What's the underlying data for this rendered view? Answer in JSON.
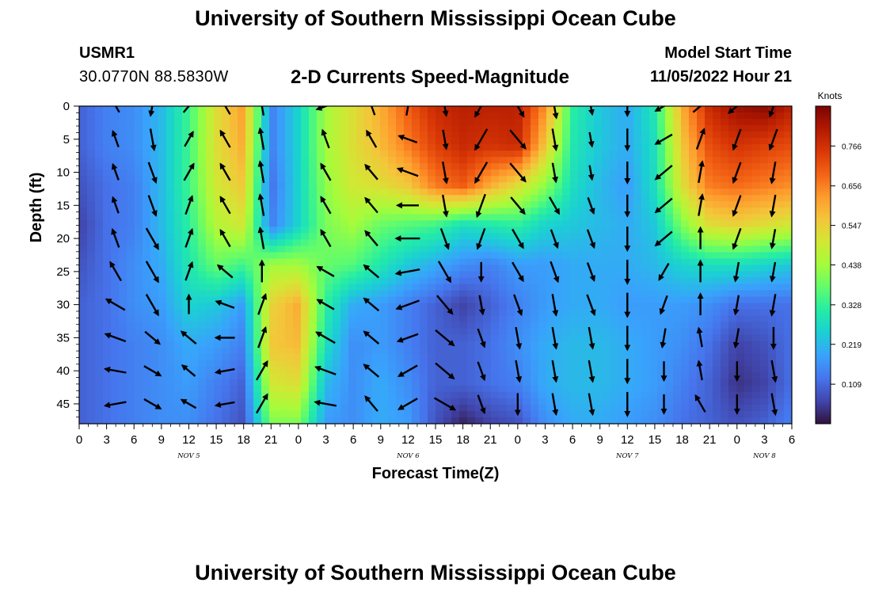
{
  "header": {
    "title": "University of Southern Mississippi Ocean Cube",
    "station_name": "USMR1",
    "station_coords": "30.0770N  88.5830W",
    "chart_title": "2-D Currents Speed-Magnitude",
    "model_start_label": "Model Start Time",
    "model_start_value": "11/05/2022 Hour 21"
  },
  "footer": {
    "title": "University of Southern Mississippi Ocean Cube"
  },
  "chart_data": {
    "type": "heatmap",
    "title": "2-D Currents Speed-Magnitude",
    "xlabel": "Forecast Time(Z)",
    "ylabel": "Depth (ft)",
    "x_ticks": [
      "0",
      "3",
      "6",
      "9",
      "12",
      "15",
      "18",
      "21",
      "0",
      "3",
      "6",
      "9",
      "12",
      "15",
      "18",
      "21",
      "0",
      "3",
      "6",
      "9",
      "12",
      "15",
      "18",
      "21",
      "0",
      "3",
      "6"
    ],
    "x_day_labels": [
      {
        "label": "NOV 5",
        "at_hour": 12
      },
      {
        "label": "NOV 6",
        "at_hour": 36
      },
      {
        "label": "NOV 7",
        "at_hour": 60
      },
      {
        "label": "NOV 8",
        "at_hour": 75
      }
    ],
    "xlim_hours": [
      0,
      78
    ],
    "y_ticks": [
      0,
      5,
      10,
      15,
      20,
      25,
      30,
      35,
      40,
      45
    ],
    "ylim": [
      0,
      48
    ],
    "y_inverted": true,
    "colorbar": {
      "label": "Knots",
      "ticks": [
        0.766,
        0.656,
        0.547,
        0.438,
        0.328,
        0.219,
        0.109
      ],
      "range": [
        0.0,
        0.876
      ],
      "colors": [
        "#30123b",
        "#4145ab",
        "#4675ed",
        "#39a2fc",
        "#1bcfd4",
        "#24eca6",
        "#61fc6c",
        "#a4fc3b",
        "#d1e834",
        "#f3c63a",
        "#fe9b2d",
        "#f36315",
        "#d93806",
        "#b11901",
        "#7a0403"
      ]
    },
    "speed_profile": {
      "depth_knots": [
        0,
        6,
        12,
        18,
        24,
        30,
        36,
        42,
        48
      ],
      "time_knots": [
        0,
        3,
        6,
        9,
        12,
        15,
        18,
        21,
        24,
        27,
        30,
        33,
        36,
        39,
        42,
        45,
        48,
        51,
        54,
        57,
        60,
        63,
        66,
        69,
        72,
        75,
        78
      ],
      "speed": [
        [
          0.1,
          0.14,
          0.16,
          0.22,
          0.34,
          0.52,
          0.62,
          0.14,
          0.26,
          0.44,
          0.52,
          0.6,
          0.7,
          0.78,
          0.8,
          0.8,
          0.8,
          0.64,
          0.32,
          0.24,
          0.2,
          0.3,
          0.6,
          0.78,
          0.84,
          0.86,
          0.8
        ],
        [
          0.1,
          0.14,
          0.16,
          0.22,
          0.34,
          0.52,
          0.6,
          0.14,
          0.26,
          0.44,
          0.52,
          0.58,
          0.66,
          0.74,
          0.78,
          0.76,
          0.78,
          0.56,
          0.3,
          0.24,
          0.2,
          0.28,
          0.56,
          0.72,
          0.76,
          0.74,
          0.72
        ],
        [
          0.08,
          0.12,
          0.14,
          0.22,
          0.34,
          0.5,
          0.56,
          0.12,
          0.26,
          0.42,
          0.5,
          0.52,
          0.56,
          0.66,
          0.7,
          0.6,
          0.52,
          0.42,
          0.28,
          0.22,
          0.18,
          0.28,
          0.52,
          0.66,
          0.68,
          0.66,
          0.64
        ],
        [
          0.06,
          0.12,
          0.14,
          0.22,
          0.32,
          0.46,
          0.5,
          0.14,
          0.26,
          0.4,
          0.44,
          0.38,
          0.36,
          0.34,
          0.28,
          0.3,
          0.32,
          0.26,
          0.24,
          0.22,
          0.2,
          0.24,
          0.4,
          0.52,
          0.54,
          0.52,
          0.5
        ],
        [
          0.08,
          0.12,
          0.16,
          0.2,
          0.3,
          0.38,
          0.34,
          0.44,
          0.44,
          0.38,
          0.36,
          0.3,
          0.24,
          0.2,
          0.16,
          0.14,
          0.18,
          0.18,
          0.2,
          0.2,
          0.2,
          0.22,
          0.26,
          0.28,
          0.28,
          0.26,
          0.24
        ],
        [
          0.1,
          0.12,
          0.16,
          0.18,
          0.26,
          0.24,
          0.18,
          0.54,
          0.6,
          0.32,
          0.2,
          0.18,
          0.14,
          0.1,
          0.06,
          0.1,
          0.14,
          0.18,
          0.2,
          0.2,
          0.18,
          0.18,
          0.18,
          0.16,
          0.12,
          0.12,
          0.12
        ],
        [
          0.1,
          0.12,
          0.14,
          0.16,
          0.2,
          0.18,
          0.14,
          0.56,
          0.58,
          0.28,
          0.16,
          0.18,
          0.14,
          0.1,
          0.1,
          0.12,
          0.16,
          0.2,
          0.22,
          0.22,
          0.2,
          0.18,
          0.16,
          0.12,
          0.06,
          0.08,
          0.12
        ],
        [
          0.1,
          0.12,
          0.14,
          0.16,
          0.18,
          0.14,
          0.1,
          0.5,
          0.52,
          0.22,
          0.16,
          0.2,
          0.16,
          0.1,
          0.1,
          0.12,
          0.14,
          0.2,
          0.22,
          0.22,
          0.2,
          0.18,
          0.14,
          0.1,
          0.04,
          0.06,
          0.12
        ],
        [
          0.1,
          0.12,
          0.14,
          0.16,
          0.16,
          0.12,
          0.08,
          0.4,
          0.4,
          0.18,
          0.16,
          0.2,
          0.18,
          0.08,
          0.02,
          0.06,
          0.08,
          0.16,
          0.2,
          0.2,
          0.18,
          0.16,
          0.12,
          0.1,
          0.08,
          0.1,
          0.14
        ]
      ]
    },
    "vector_grid": {
      "time_hours": [
        4,
        8,
        12,
        16,
        20,
        27,
        32,
        36,
        40,
        44,
        48,
        52,
        56,
        60,
        64,
        68,
        72,
        76
      ],
      "depth_ft": [
        0,
        5,
        10,
        15,
        20,
        25,
        30,
        35,
        40,
        45
      ],
      "direction_deg": [
        [
          240,
          100,
          310,
          240,
          260,
          160,
          250,
          280,
          80,
          120,
          60,
          80,
          80,
          90,
          150,
          320,
          140,
          110
        ],
        [
          250,
          80,
          300,
          240,
          260,
          250,
          240,
          200,
          80,
          120,
          50,
          80,
          80,
          90,
          150,
          290,
          110,
          110
        ],
        [
          250,
          70,
          300,
          240,
          260,
          240,
          230,
          200,
          80,
          120,
          50,
          80,
          80,
          90,
          140,
          280,
          110,
          100
        ],
        [
          250,
          70,
          290,
          240,
          260,
          240,
          230,
          180,
          80,
          110,
          50,
          60,
          70,
          90,
          140,
          280,
          110,
          100
        ],
        [
          250,
          60,
          290,
          240,
          260,
          240,
          230,
          180,
          70,
          110,
          60,
          70,
          70,
          90,
          140,
          270,
          110,
          100
        ],
        [
          240,
          60,
          290,
          220,
          270,
          210,
          220,
          170,
          60,
          90,
          60,
          70,
          70,
          90,
          120,
          270,
          100,
          100
        ],
        [
          210,
          60,
          270,
          200,
          290,
          210,
          220,
          160,
          50,
          80,
          70,
          80,
          70,
          90,
          110,
          270,
          100,
          100
        ],
        [
          200,
          40,
          220,
          180,
          290,
          210,
          220,
          160,
          40,
          70,
          80,
          80,
          80,
          90,
          100,
          260,
          100,
          90
        ],
        [
          190,
          30,
          220,
          170,
          300,
          200,
          220,
          150,
          40,
          70,
          80,
          80,
          80,
          90,
          90,
          260,
          90,
          80
        ],
        [
          170,
          30,
          210,
          170,
          300,
          190,
          230,
          150,
          30,
          70,
          90,
          80,
          80,
          90,
          90,
          240,
          90,
          80
        ]
      ],
      "magnitude_rel": [
        [
          0.6,
          0.8,
          0.7,
          0.8,
          0.8,
          0.8,
          0.8,
          0.8,
          0.8,
          1.0,
          1.0,
          1.0,
          0.7,
          0.8,
          0.8,
          0.8,
          0.9,
          0.9
        ],
        [
          0.7,
          0.9,
          0.7,
          0.8,
          0.9,
          0.8,
          0.8,
          0.8,
          0.8,
          1.0,
          1.0,
          0.9,
          0.6,
          0.9,
          0.8,
          0.9,
          0.9,
          0.9
        ],
        [
          0.7,
          0.9,
          0.8,
          0.8,
          0.9,
          0.8,
          0.8,
          0.9,
          0.9,
          1.0,
          1.0,
          0.8,
          0.6,
          0.9,
          0.9,
          0.9,
          0.9,
          0.9
        ],
        [
          0.7,
          0.9,
          0.8,
          0.8,
          0.9,
          0.8,
          0.8,
          0.9,
          0.9,
          1.0,
          0.9,
          0.8,
          0.7,
          0.9,
          0.9,
          0.9,
          0.9,
          0.9
        ],
        [
          0.8,
          1.0,
          0.8,
          0.8,
          0.9,
          0.8,
          0.8,
          1.0,
          0.9,
          0.9,
          0.9,
          0.8,
          0.8,
          1.0,
          0.9,
          0.9,
          0.9,
          0.8
        ],
        [
          0.9,
          1.0,
          0.8,
          0.8,
          0.9,
          0.8,
          0.8,
          1.0,
          1.0,
          0.8,
          0.9,
          0.9,
          0.8,
          1.0,
          0.8,
          0.9,
          0.8,
          0.8
        ],
        [
          0.9,
          1.0,
          0.8,
          0.8,
          0.9,
          0.8,
          0.8,
          1.0,
          1.0,
          0.8,
          0.9,
          0.9,
          0.9,
          1.0,
          0.8,
          0.9,
          0.8,
          0.9
        ],
        [
          0.9,
          0.8,
          0.8,
          0.8,
          0.9,
          0.9,
          0.8,
          0.9,
          1.0,
          0.8,
          0.9,
          0.9,
          0.9,
          1.0,
          0.8,
          0.8,
          0.8,
          0.9
        ],
        [
          0.9,
          0.8,
          0.7,
          0.8,
          0.9,
          0.9,
          0.8,
          0.9,
          1.0,
          0.8,
          0.9,
          0.9,
          0.9,
          1.0,
          0.8,
          0.8,
          0.8,
          0.9
        ],
        [
          0.9,
          0.8,
          0.7,
          0.8,
          0.9,
          0.9,
          0.8,
          0.9,
          1.0,
          0.8,
          0.9,
          0.9,
          0.9,
          1.0,
          0.8,
          0.8,
          0.8,
          0.9
        ]
      ]
    }
  }
}
